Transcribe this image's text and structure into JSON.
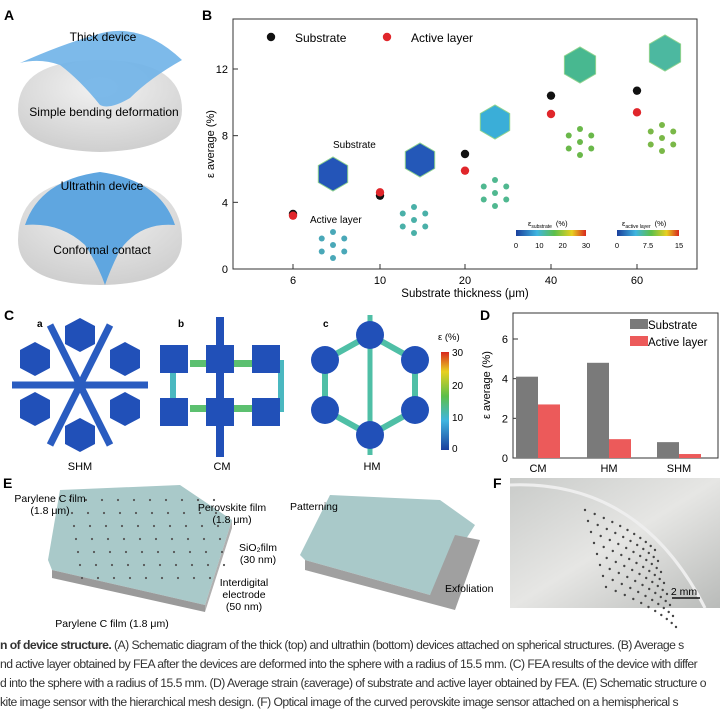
{
  "panels": {
    "A": {
      "label": "A",
      "top_title": "Thick device",
      "top_sub": "Simple bending deformation",
      "bottom_title": "Ultrathin device",
      "bottom_sub": "Conformal contact"
    },
    "B": {
      "label": "B",
      "inset_substrate": "Substrate",
      "inset_active": "Active layer",
      "cb1_label": "ε",
      "cb1_sub": "substrate",
      "cb1_unit": "(%)",
      "cb1_ticks": [
        "0",
        "10",
        "20",
        "30"
      ],
      "cb2_label": "ε",
      "cb2_sub": "active layer",
      "cb2_unit": "(%)",
      "cb2_ticks": [
        "0",
        "7.5",
        "15"
      ]
    },
    "C": {
      "label": "C",
      "sub_a": "a",
      "sub_b": "b",
      "sub_c": "c",
      "name_a": "SHM",
      "name_b": "CM",
      "name_c": "HM",
      "cb_label": "ε (%)",
      "cb_ticks": [
        "30",
        "20",
        "10",
        "0"
      ]
    },
    "D": {
      "label": "D"
    },
    "E": {
      "label": "E",
      "l1": "Parylene C film",
      "l1b": "(1.8 μm)",
      "l2": "Perovskite film",
      "l2b": "(1.8 μm)",
      "l3": "SiO₂film",
      "l3b": "(30 nm)",
      "l4": "Interdigital",
      "l4b": "electrode",
      "l4c": "(50 nm)",
      "l5": "Parylene C film (1.8 μm)",
      "l6": "Patterning",
      "l7": "Exfoliation"
    },
    "F": {
      "label": "F",
      "scale": "2 mm"
    }
  },
  "caption": {
    "l1a": "n of device structure.",
    "l1b": " (A) Schematic diagram of the thick (top) and ultrathin (bottom) devices attached on spherical structures. (B) Average s",
    "l2": "nd active layer obtained by FEA after the devices are deformed into the sphere with a radius of 15.5 mm. (C) FEA results of the device with differ",
    "l3": "d into the sphere with a radius of 15.5 mm. (D) Average strain (εaverage) of substrate and active layer obtained by FEA. (E) Schematic structure o",
    "l4": "kite image sensor with the hierarchical mesh design. (F) Optical image of the curved perovskite image sensor attached on a hemispherical s"
  },
  "chart_data": [
    {
      "type": "scatter",
      "panel": "B",
      "xlabel": "Substrate thickness  (μm)",
      "ylabel": "ε average (%)",
      "categories": [
        "6",
        "10",
        "20",
        "40",
        "60"
      ],
      "ylim": [
        0,
        14.5
      ],
      "yticks": [
        "0",
        "4",
        "8",
        "12"
      ],
      "legend": "top-left",
      "series": [
        {
          "name": "Substrate",
          "color": "#111111",
          "values": [
            3.3,
            4.4,
            6.9,
            10.4,
            10.7
          ]
        },
        {
          "name": "Active layer",
          "color": "#e0262b",
          "values": [
            3.2,
            4.6,
            5.9,
            9.3,
            9.4
          ]
        }
      ]
    },
    {
      "type": "bar",
      "panel": "D",
      "ylabel": "ε average (%)",
      "categories": [
        "CM",
        "HM",
        "SHM"
      ],
      "ylim": [
        0,
        7.2
      ],
      "yticks": [
        "0",
        "2",
        "4",
        "6"
      ],
      "legend": "top-right",
      "series": [
        {
          "name": "Substrate",
          "color": "#7a7a7a",
          "values": [
            4.1,
            4.8,
            0.8
          ]
        },
        {
          "name": "Active layer",
          "color": "#ec5a5a",
          "values": [
            2.7,
            0.95,
            0.2
          ]
        }
      ]
    }
  ]
}
